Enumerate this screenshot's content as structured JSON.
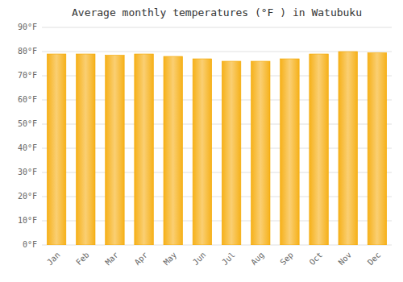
{
  "chart_data": {
    "type": "bar",
    "title": "Average monthly temperatures (°F ) in Watubuku",
    "categories": [
      "Jan",
      "Feb",
      "Mar",
      "Apr",
      "May",
      "Jun",
      "Jul",
      "Aug",
      "Sep",
      "Oct",
      "Nov",
      "Dec"
    ],
    "values": [
      79,
      79,
      78.5,
      79,
      78,
      77,
      76,
      76,
      77,
      79,
      80,
      79.5
    ],
    "color": "#F5A800",
    "ylim": [
      0,
      90
    ],
    "yticks": [
      {
        "value": 0,
        "label": "0°F"
      },
      {
        "value": 10,
        "label": "10°F"
      },
      {
        "value": 20,
        "label": "20°F"
      },
      {
        "value": 30,
        "label": "30°F"
      },
      {
        "value": 40,
        "label": "40°F"
      },
      {
        "value": 50,
        "label": "50°F"
      },
      {
        "value": 60,
        "label": "60°F"
      },
      {
        "value": 70,
        "label": "70°F"
      },
      {
        "value": 80,
        "label": "80°F"
      },
      {
        "value": 90,
        "label": "90°F"
      }
    ],
    "grid": true
  }
}
